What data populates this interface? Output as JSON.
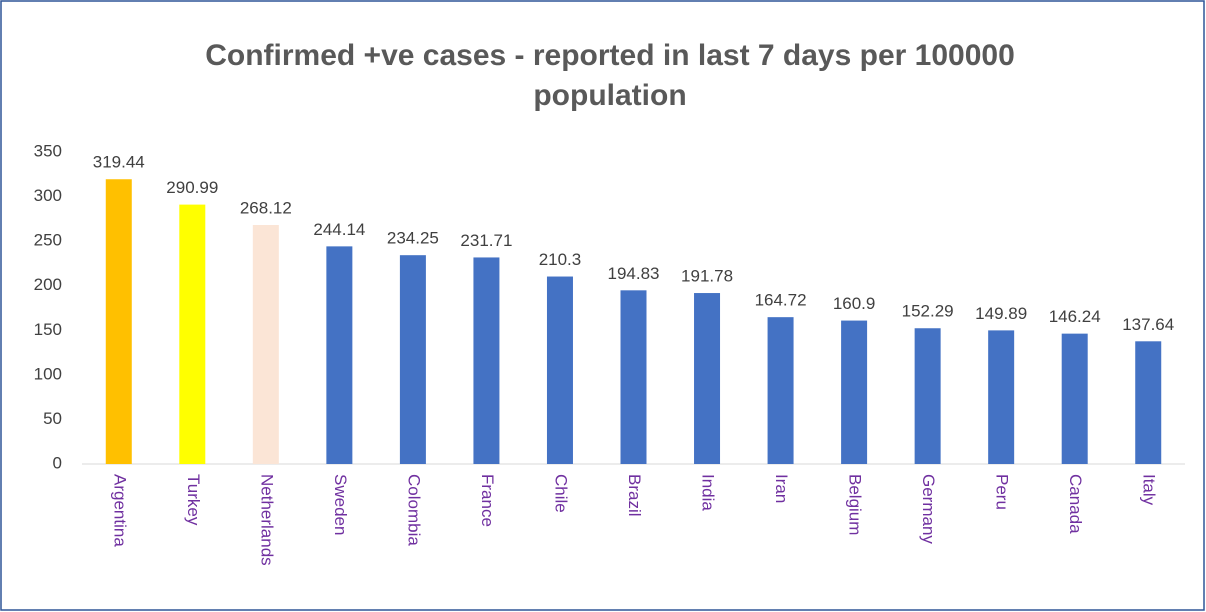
{
  "chart_data": {
    "type": "bar",
    "title": "Confirmed +ve cases - reported in last 7 days per 100000 population",
    "categories": [
      "Argentina",
      "Turkey",
      "Netherlands",
      "Sweden",
      "Colombia",
      "France",
      "Chile",
      "Brazil",
      "India",
      "Iran",
      "Belgium",
      "Germany",
      "Peru",
      "Canada",
      "Italy"
    ],
    "values": [
      319.44,
      290.99,
      268.12,
      244.14,
      234.25,
      231.71,
      210.3,
      194.83,
      191.78,
      164.72,
      160.9,
      152.29,
      149.89,
      146.24,
      137.64
    ],
    "colors": [
      "#ffc000",
      "#ffff00",
      "#fbe5d6",
      "#4472c4",
      "#4472c4",
      "#4472c4",
      "#4472c4",
      "#4472c4",
      "#4472c4",
      "#4472c4",
      "#4472c4",
      "#4472c4",
      "#4472c4",
      "#4472c4",
      "#4472c4"
    ],
    "category_label_color": "#7030a0",
    "ylim": [
      0,
      350
    ],
    "yticks": [
      0,
      50,
      100,
      150,
      200,
      250,
      300,
      350
    ],
    "grid": false
  }
}
